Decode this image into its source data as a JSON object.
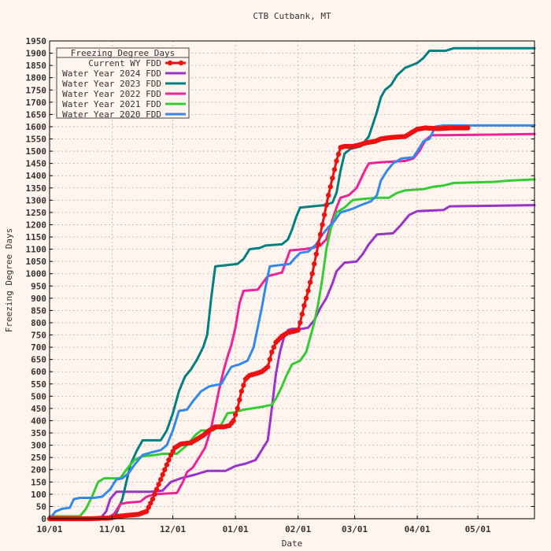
{
  "chart_data": {
    "type": "line",
    "title": "CTB Cutbank, MT",
    "xlabel": "Date",
    "ylabel": "Freezing Degree Days",
    "x_tick_labels": [
      "10/01",
      "11/01",
      "12/01",
      "01/01",
      "02/01",
      "03/01",
      "04/01",
      "05/01"
    ],
    "xlim_days": [
      0,
      240
    ],
    "ylim": [
      0,
      1950
    ],
    "y_ticks": [
      0,
      50,
      100,
      150,
      200,
      250,
      300,
      350,
      400,
      450,
      500,
      550,
      600,
      650,
      700,
      750,
      800,
      850,
      900,
      950,
      1000,
      1050,
      1100,
      1150,
      1200,
      1250,
      1300,
      1350,
      1400,
      1450,
      1500,
      1550,
      1600,
      1650,
      1700,
      1750,
      1800,
      1850,
      1900,
      1950
    ],
    "grid": true,
    "legend": {
      "title": "Freezing Degree Days",
      "position": "top-left"
    },
    "series": [
      {
        "name": "Current WY FDD",
        "color": "#ee1111",
        "markers": true,
        "points": [
          [
            0,
            0
          ],
          [
            10,
            0
          ],
          [
            20,
            0
          ],
          [
            30,
            3
          ],
          [
            34,
            10
          ],
          [
            40,
            15
          ],
          [
            44,
            18
          ],
          [
            48,
            30
          ],
          [
            51,
            80
          ],
          [
            54,
            140
          ],
          [
            57,
            200
          ],
          [
            60,
            260
          ],
          [
            62,
            290
          ],
          [
            65,
            305
          ],
          [
            70,
            310
          ],
          [
            73,
            325
          ],
          [
            76,
            340
          ],
          [
            79,
            360
          ],
          [
            82,
            375
          ],
          [
            86,
            375
          ],
          [
            89,
            380
          ],
          [
            91,
            400
          ],
          [
            93,
            450
          ],
          [
            95,
            520
          ],
          [
            97,
            570
          ],
          [
            99,
            585
          ],
          [
            102,
            592
          ],
          [
            105,
            600
          ],
          [
            108,
            620
          ],
          [
            110,
            680
          ],
          [
            112,
            720
          ],
          [
            115,
            745
          ],
          [
            118,
            760
          ],
          [
            121,
            765
          ],
          [
            123,
            770
          ],
          [
            124,
            800
          ],
          [
            126,
            870
          ],
          [
            128,
            930
          ],
          [
            130,
            1000
          ],
          [
            132,
            1080
          ],
          [
            134,
            1160
          ],
          [
            136,
            1240
          ],
          [
            138,
            1320
          ],
          [
            140,
            1390
          ],
          [
            142,
            1460
          ],
          [
            144,
            1515
          ],
          [
            146,
            1520
          ],
          [
            150,
            1520
          ],
          [
            153,
            1525
          ],
          [
            157,
            1535
          ],
          [
            161,
            1540
          ],
          [
            164,
            1550
          ],
          [
            168,
            1555
          ],
          [
            172,
            1558
          ],
          [
            176,
            1560
          ],
          [
            179,
            1575
          ],
          [
            182,
            1590
          ],
          [
            186,
            1595
          ],
          [
            192,
            1592
          ],
          [
            199,
            1595
          ],
          [
            207,
            1595
          ]
        ],
        "end_day": 207
      },
      {
        "name": "Water Year 2024 FDD",
        "color": "#9933cc",
        "markers": false,
        "points": [
          [
            0,
            0
          ],
          [
            25,
            0
          ],
          [
            28,
            30
          ],
          [
            30,
            80
          ],
          [
            33,
            110
          ],
          [
            50,
            110
          ],
          [
            56,
            115
          ],
          [
            60,
            150
          ],
          [
            65,
            165
          ],
          [
            72,
            180
          ],
          [
            78,
            195
          ],
          [
            87,
            195
          ],
          [
            92,
            215
          ],
          [
            97,
            225
          ],
          [
            102,
            240
          ],
          [
            105,
            280
          ],
          [
            108,
            320
          ],
          [
            110,
            450
          ],
          [
            112,
            590
          ],
          [
            114,
            680
          ],
          [
            116,
            740
          ],
          [
            118,
            770
          ],
          [
            120,
            775
          ],
          [
            125,
            775
          ],
          [
            128,
            780
          ],
          [
            131,
            810
          ],
          [
            134,
            860
          ],
          [
            137,
            900
          ],
          [
            140,
            960
          ],
          [
            142,
            1010
          ],
          [
            146,
            1045
          ],
          [
            152,
            1050
          ],
          [
            155,
            1080
          ],
          [
            158,
            1120
          ],
          [
            162,
            1160
          ],
          [
            170,
            1165
          ],
          [
            174,
            1200
          ],
          [
            178,
            1240
          ],
          [
            182,
            1255
          ],
          [
            195,
            1260
          ],
          [
            198,
            1275
          ],
          [
            240,
            1280
          ]
        ]
      },
      {
        "name": "Water Year 2023 FDD",
        "color": "#008080",
        "markers": false,
        "points": [
          [
            0,
            0
          ],
          [
            29,
            0
          ],
          [
            33,
            20
          ],
          [
            36,
            80
          ],
          [
            38,
            150
          ],
          [
            40,
            220
          ],
          [
            43,
            275
          ],
          [
            46,
            320
          ],
          [
            55,
            320
          ],
          [
            58,
            360
          ],
          [
            61,
            430
          ],
          [
            64,
            520
          ],
          [
            67,
            580
          ],
          [
            70,
            610
          ],
          [
            73,
            650
          ],
          [
            76,
            700
          ],
          [
            78,
            750
          ],
          [
            80,
            900
          ],
          [
            82,
            1030
          ],
          [
            88,
            1035
          ],
          [
            93,
            1040
          ],
          [
            96,
            1060
          ],
          [
            99,
            1100
          ],
          [
            104,
            1105
          ],
          [
            107,
            1115
          ],
          [
            115,
            1120
          ],
          [
            118,
            1140
          ],
          [
            120,
            1180
          ],
          [
            122,
            1230
          ],
          [
            124,
            1270
          ],
          [
            130,
            1275
          ],
          [
            136,
            1280
          ],
          [
            140,
            1290
          ],
          [
            142,
            1330
          ],
          [
            144,
            1420
          ],
          [
            146,
            1490
          ],
          [
            149,
            1510
          ],
          [
            154,
            1520
          ],
          [
            158,
            1560
          ],
          [
            160,
            1610
          ],
          [
            162,
            1660
          ],
          [
            164,
            1720
          ],
          [
            166,
            1750
          ],
          [
            169,
            1770
          ],
          [
            172,
            1810
          ],
          [
            176,
            1840
          ],
          [
            182,
            1860
          ],
          [
            185,
            1880
          ],
          [
            188,
            1910
          ],
          [
            196,
            1910
          ],
          [
            200,
            1920
          ],
          [
            240,
            1920
          ]
        ]
      },
      {
        "name": "Water Year 2022 FDD",
        "color": "#ee2299",
        "markers": false,
        "points": [
          [
            0,
            0
          ],
          [
            28,
            0
          ],
          [
            32,
            20
          ],
          [
            35,
            60
          ],
          [
            38,
            65
          ],
          [
            45,
            70
          ],
          [
            48,
            90
          ],
          [
            52,
            100
          ],
          [
            63,
            105
          ],
          [
            66,
            150
          ],
          [
            68,
            190
          ],
          [
            71,
            210
          ],
          [
            74,
            250
          ],
          [
            77,
            290
          ],
          [
            80,
            370
          ],
          [
            82,
            450
          ],
          [
            84,
            530
          ],
          [
            86,
            600
          ],
          [
            88,
            660
          ],
          [
            90,
            710
          ],
          [
            92,
            780
          ],
          [
            94,
            880
          ],
          [
            96,
            930
          ],
          [
            103,
            935
          ],
          [
            108,
            990
          ],
          [
            115,
            1005
          ],
          [
            117,
            1050
          ],
          [
            119,
            1095
          ],
          [
            126,
            1100
          ],
          [
            130,
            1105
          ],
          [
            134,
            1115
          ],
          [
            137,
            1140
          ],
          [
            140,
            1220
          ],
          [
            142,
            1270
          ],
          [
            144,
            1310
          ],
          [
            148,
            1320
          ],
          [
            152,
            1350
          ],
          [
            156,
            1420
          ],
          [
            158,
            1450
          ],
          [
            164,
            1455
          ],
          [
            176,
            1460
          ],
          [
            180,
            1470
          ],
          [
            183,
            1500
          ],
          [
            186,
            1545
          ],
          [
            189,
            1565
          ],
          [
            195,
            1565
          ],
          [
            240,
            1570
          ]
        ]
      },
      {
        "name": "Water Year 2021 FDD",
        "color": "#33cc33",
        "markers": false,
        "points": [
          [
            0,
            10
          ],
          [
            15,
            10
          ],
          [
            18,
            40
          ],
          [
            21,
            90
          ],
          [
            24,
            150
          ],
          [
            27,
            165
          ],
          [
            35,
            165
          ],
          [
            38,
            200
          ],
          [
            42,
            240
          ],
          [
            46,
            255
          ],
          [
            52,
            260
          ],
          [
            56,
            265
          ],
          [
            63,
            265
          ],
          [
            68,
            300
          ],
          [
            72,
            340
          ],
          [
            75,
            360
          ],
          [
            81,
            360
          ],
          [
            85,
            385
          ],
          [
            88,
            430
          ],
          [
            92,
            435
          ],
          [
            96,
            445
          ],
          [
            104,
            455
          ],
          [
            110,
            465
          ],
          [
            112,
            490
          ],
          [
            115,
            540
          ],
          [
            117,
            580
          ],
          [
            120,
            630
          ],
          [
            124,
            645
          ],
          [
            127,
            680
          ],
          [
            129,
            740
          ],
          [
            131,
            800
          ],
          [
            133,
            880
          ],
          [
            135,
            980
          ],
          [
            137,
            1100
          ],
          [
            139,
            1180
          ],
          [
            142,
            1250
          ],
          [
            146,
            1270
          ],
          [
            150,
            1300
          ],
          [
            155,
            1305
          ],
          [
            162,
            1310
          ],
          [
            168,
            1310
          ],
          [
            172,
            1330
          ],
          [
            176,
            1340
          ],
          [
            185,
            1345
          ],
          [
            190,
            1355
          ],
          [
            195,
            1360
          ],
          [
            200,
            1370
          ],
          [
            220,
            1375
          ],
          [
            228,
            1380
          ],
          [
            240,
            1385
          ]
        ]
      },
      {
        "name": "Water Year 2020 FDD",
        "color": "#3388ee",
        "markers": false,
        "points": [
          [
            0,
            0
          ],
          [
            3,
            30
          ],
          [
            6,
            40
          ],
          [
            10,
            45
          ],
          [
            12,
            80
          ],
          [
            15,
            85
          ],
          [
            22,
            85
          ],
          [
            26,
            90
          ],
          [
            30,
            120
          ],
          [
            33,
            160
          ],
          [
            36,
            165
          ],
          [
            39,
            185
          ],
          [
            42,
            220
          ],
          [
            46,
            260
          ],
          [
            50,
            270
          ],
          [
            55,
            280
          ],
          [
            58,
            300
          ],
          [
            61,
            360
          ],
          [
            64,
            440
          ],
          [
            68,
            445
          ],
          [
            71,
            480
          ],
          [
            75,
            520
          ],
          [
            79,
            540
          ],
          [
            85,
            550
          ],
          [
            87,
            580
          ],
          [
            90,
            620
          ],
          [
            94,
            630
          ],
          [
            98,
            645
          ],
          [
            101,
            700
          ],
          [
            103,
            780
          ],
          [
            105,
            860
          ],
          [
            107,
            950
          ],
          [
            109,
            1030
          ],
          [
            114,
            1035
          ],
          [
            119,
            1040
          ],
          [
            121,
            1060
          ],
          [
            124,
            1085
          ],
          [
            128,
            1090
          ],
          [
            132,
            1120
          ],
          [
            135,
            1160
          ],
          [
            138,
            1190
          ],
          [
            141,
            1215
          ],
          [
            144,
            1250
          ],
          [
            150,
            1265
          ],
          [
            154,
            1280
          ],
          [
            159,
            1295
          ],
          [
            162,
            1320
          ],
          [
            164,
            1380
          ],
          [
            167,
            1420
          ],
          [
            170,
            1450
          ],
          [
            174,
            1470
          ],
          [
            180,
            1475
          ],
          [
            182,
            1500
          ],
          [
            185,
            1540
          ],
          [
            188,
            1550
          ],
          [
            191,
            1600
          ],
          [
            195,
            1605
          ],
          [
            240,
            1605
          ]
        ]
      }
    ]
  }
}
